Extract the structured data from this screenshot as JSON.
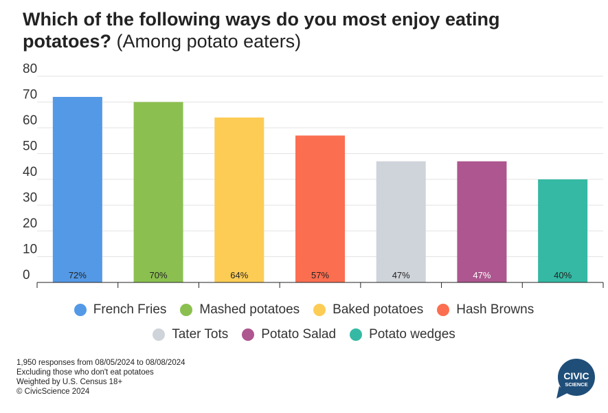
{
  "title": {
    "question": "Which of the following ways do you most enjoy eating potatoes?",
    "subtitle": "(Among potato eaters)"
  },
  "chart_data": {
    "type": "bar",
    "categories": [
      "French Fries",
      "Mashed potatoes",
      "Baked potatoes",
      "Hash Browns",
      "Tater Tots",
      "Potato Salad",
      "Potato wedges"
    ],
    "values": [
      72,
      70,
      64,
      57,
      47,
      47,
      40
    ],
    "data_labels": [
      "72%",
      "70%",
      "64%",
      "57%",
      "47%",
      "47%",
      "40%"
    ],
    "colors": [
      "#5499e6",
      "#8bc050",
      "#fccc55",
      "#fb6e50",
      "#cfd4da",
      "#ad568f",
      "#35b9a4"
    ],
    "label_colors": [
      "#222222",
      "#222222",
      "#222222",
      "#222222",
      "#222222",
      "#ffffff",
      "#222222"
    ],
    "ylim": [
      0,
      80
    ],
    "yticks": [
      "0",
      "10",
      "20",
      "30",
      "40",
      "50",
      "60",
      "70",
      "80"
    ],
    "grid": true,
    "legend": "bottom"
  },
  "footnotes": [
    "1,950 responses from 08/05/2024 to 08/08/2024",
    "Excluding those who don't eat potatoes",
    "Weighted by U.S. Census 18+",
    "© CivicScience 2024"
  ],
  "logo": {
    "line1": "CIVIC",
    "line2": "SCIENCE",
    "color": "#1f4e79"
  }
}
